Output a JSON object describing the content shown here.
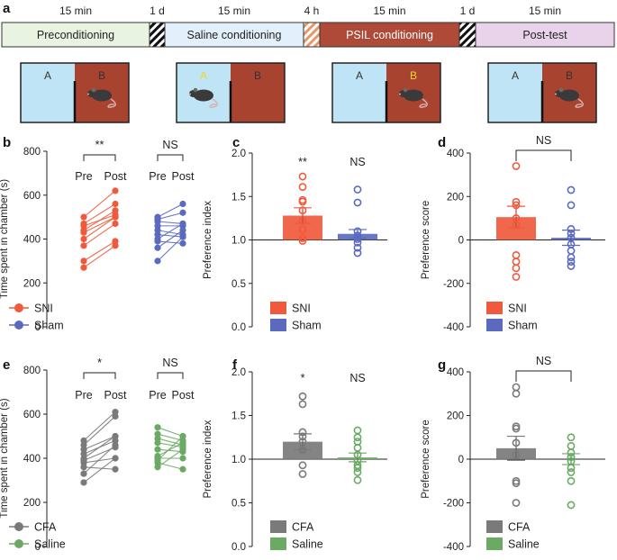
{
  "panel_letters": {
    "a": "a",
    "b": "b",
    "c": "c",
    "d": "d",
    "e": "e",
    "f": "f",
    "g": "g"
  },
  "timeline": {
    "stages": [
      {
        "label": "Preconditioning",
        "duration": "15 min",
        "color": "#e8f3e2"
      },
      {
        "label": "Saline conditioning",
        "duration": "15 min",
        "color": "#e3f0fb"
      },
      {
        "label": "PSIL conditioning",
        "duration": "15 min",
        "color": "#b04a38"
      },
      {
        "label": "Post-test",
        "duration": "15 min",
        "color": "#e8d3ea"
      }
    ],
    "gaps": [
      "1 d",
      "4 h",
      "1 d"
    ]
  },
  "chambers": [
    {
      "a": "A",
      "b": "B",
      "mouse_side": "B",
      "highlight": ""
    },
    {
      "a": "A",
      "b": "B",
      "mouse_side": "A",
      "highlight": "A"
    },
    {
      "a": "A",
      "b": "B",
      "mouse_side": "B",
      "highlight": "B"
    },
    {
      "a": "A",
      "b": "B",
      "mouse_side": "B",
      "highlight": ""
    }
  ],
  "colors": {
    "sni": "#ef5a3c",
    "sham": "#5b6abf",
    "cfa": "#7a7a7a",
    "saline": "#6aaa64",
    "chamberA": "#bfe4f5",
    "chamberB": "#a8432f",
    "highlightText": "#f5d230"
  },
  "chart_data": [
    {
      "panel": "b",
      "type": "scatter",
      "ylabel": "Time spent in chamber (s)",
      "ylim": [
        0,
        800
      ],
      "yticks": [
        0,
        200,
        400,
        600,
        800
      ],
      "categories": [
        "Pre",
        "Post",
        "Pre",
        "Post"
      ],
      "significance": [
        "**",
        "NS"
      ],
      "legend": [
        "SNI",
        "Sham"
      ],
      "series": [
        {
          "name": "SNI",
          "pre": [
            500,
            470,
            460,
            440,
            430,
            400,
            370,
            300,
            270
          ],
          "post": [
            620,
            560,
            510,
            530,
            500,
            500,
            470,
            390,
            370
          ]
        },
        {
          "name": "Sham",
          "pre": [
            500,
            490,
            480,
            460,
            440,
            420,
            400,
            390,
            360,
            300
          ],
          "post": [
            560,
            520,
            470,
            460,
            420,
            410,
            470,
            380,
            440,
            410
          ]
        }
      ]
    },
    {
      "panel": "c",
      "type": "bar",
      "ylabel": "Preference index",
      "ylim": [
        0,
        2.0
      ],
      "yticks": [
        0,
        0.5,
        1.0,
        1.5,
        2.0
      ],
      "baseline": 1.0,
      "categories": [
        "SNI",
        "Sham"
      ],
      "significance": [
        "**",
        "NS"
      ],
      "legend": [
        "SNI",
        "Sham"
      ],
      "values": [
        1.28,
        1.07
      ],
      "sem": [
        0.09,
        0.05
      ],
      "points": [
        [
          1.73,
          1.61,
          1.46,
          1.44,
          1.34,
          1.22,
          1.12,
          1.02,
          0.99
        ],
        [
          1.58,
          1.43,
          1.1,
          1.05,
          1.03,
          1.01,
          0.97,
          0.91,
          0.85
        ]
      ]
    },
    {
      "panel": "d",
      "type": "bar",
      "ylabel": "Preference score",
      "ylim": [
        -400,
        400
      ],
      "yticks": [
        -400,
        -200,
        0,
        200,
        400
      ],
      "baseline": 0,
      "categories": [
        "SNI",
        "Sham"
      ],
      "significance": [
        "NS"
      ],
      "legend": [
        "SNI",
        "Sham"
      ],
      "values": [
        105,
        10
      ],
      "sem": [
        50,
        35
      ],
      "points": [
        [
          340,
          175,
          160,
          100,
          70,
          -70,
          -100,
          -130,
          -170
        ],
        [
          230,
          160,
          50,
          30,
          10,
          -20,
          -50,
          -80,
          -100,
          -120
        ]
      ]
    },
    {
      "panel": "e",
      "type": "scatter",
      "ylabel": "Time spent in chamber (s)",
      "ylim": [
        0,
        800
      ],
      "yticks": [
        0,
        200,
        400,
        600,
        800
      ],
      "categories": [
        "Pre",
        "Post",
        "Pre",
        "Post"
      ],
      "significance": [
        "*",
        "NS"
      ],
      "legend": [
        "CFA",
        "Saline"
      ],
      "series": [
        {
          "name": "CFA",
          "pre": [
            480,
            460,
            440,
            420,
            400,
            390,
            380,
            360,
            330,
            290
          ],
          "post": [
            610,
            590,
            500,
            480,
            500,
            450,
            400,
            350,
            460,
            400
          ]
        },
        {
          "name": "Saline",
          "pre": [
            540,
            510,
            490,
            470,
            440,
            410,
            400,
            390,
            380,
            360
          ],
          "post": [
            500,
            480,
            460,
            450,
            430,
            470,
            400,
            500,
            350,
            440
          ]
        }
      ]
    },
    {
      "panel": "f",
      "type": "bar",
      "ylabel": "Preference index",
      "ylim": [
        0,
        2.0
      ],
      "yticks": [
        0,
        0.5,
        1.0,
        1.5,
        2.0
      ],
      "baseline": 1.0,
      "categories": [
        "CFA",
        "Saline"
      ],
      "significance": [
        "*",
        "NS"
      ],
      "legend": [
        "CFA",
        "Saline"
      ],
      "values": [
        1.2,
        1.02
      ],
      "sem": [
        0.09,
        0.05
      ],
      "points": [
        [
          1.72,
          1.63,
          1.31,
          1.26,
          1.2,
          1.12,
          1.1,
          0.93,
          0.83
        ],
        [
          1.33,
          1.25,
          1.2,
          1.13,
          1.05,
          0.98,
          0.93,
          0.9,
          0.85,
          0.76
        ]
      ]
    },
    {
      "panel": "g",
      "type": "bar",
      "ylabel": "Preference score",
      "ylim": [
        -400,
        400
      ],
      "yticks": [
        -400,
        -200,
        0,
        200,
        400
      ],
      "baseline": 0,
      "categories": [
        "CFA",
        "Saline"
      ],
      "significance": [
        "NS"
      ],
      "legend": [
        "CFA",
        "Saline"
      ],
      "values": [
        50,
        0
      ],
      "sem": [
        55,
        25
      ],
      "points": [
        [
          330,
          300,
          150,
          140,
          75,
          20,
          -100,
          -110,
          -200
        ],
        [
          100,
          60,
          30,
          10,
          -10,
          -40,
          -60,
          -100,
          -210
        ]
      ]
    }
  ]
}
